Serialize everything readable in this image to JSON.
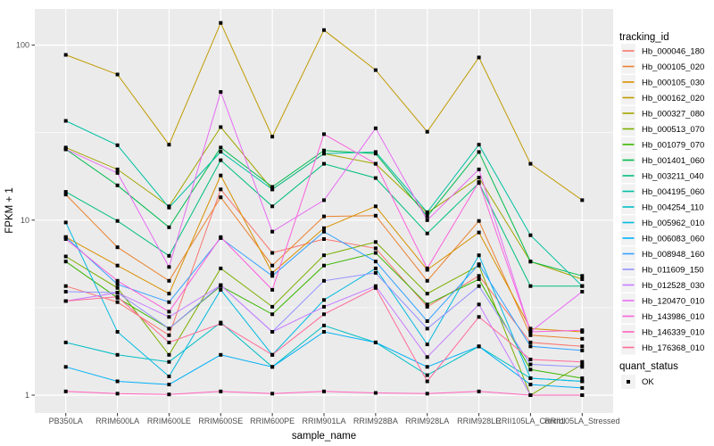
{
  "chart_data": {
    "type": "line",
    "title": "",
    "xlabel": "sample_name",
    "ylabel": "FPKM + 1",
    "y_scale": "log10",
    "y_ticks": [
      "1",
      "10",
      "100"
    ],
    "y_tick_values": [
      1,
      10,
      100
    ],
    "y_minor_gridlines": [
      3.1623,
      31.623
    ],
    "ylim": [
      0.79,
      160
    ],
    "grid": "white-on-grey (ggplot style)",
    "legend_position": "right",
    "categories": [
      "PB350LA",
      "RRIM600LA",
      "RRIM600LE",
      "RRIM600SE",
      "RRIM600PE",
      "RRIM901LA",
      "RRIM928BA",
      "RRIM928LA",
      "RRIM928LE",
      "RRII105LA_Control",
      "RRII105LA_Stressed"
    ],
    "legend": {
      "title": "tracking_id"
    },
    "quant_legend": {
      "title": "quant_status",
      "items": [
        "OK"
      ]
    },
    "point": {
      "shape": "square",
      "color": "#000000",
      "size": 4
    },
    "series": [
      {
        "name": "Hb_000046_180",
        "color": "#F8766D",
        "values": [
          4.2,
          3.4,
          2.2,
          15.0,
          6.5,
          7.8,
          6.9,
          3.2,
          4.8,
          2.0,
          1.9
        ]
      },
      {
        "name": "Hb_000105_020",
        "color": "#EA8331",
        "values": [
          14.0,
          7.0,
          4.5,
          13.5,
          5.5,
          10.5,
          10.6,
          4.5,
          9.9,
          2.2,
          2.1
        ]
      },
      {
        "name": "Hb_000105_030",
        "color": "#D89000",
        "values": [
          8.0,
          5.5,
          3.8,
          18.0,
          5.0,
          9.0,
          12.0,
          5.2,
          8.5,
          2.4,
          2.3
        ]
      },
      {
        "name": "Hb_000162_020",
        "color": "#C09B00",
        "values": [
          88,
          68,
          27,
          134,
          30,
          122,
          72,
          32,
          85,
          21,
          13
        ]
      },
      {
        "name": "Hb_000327_080",
        "color": "#A3A500",
        "values": [
          26,
          19.5,
          12,
          34,
          15,
          24,
          21,
          11,
          17.5,
          5.8,
          4.6
        ]
      },
      {
        "name": "Hb_000513_070",
        "color": "#7CAE00",
        "values": [
          6.2,
          4.1,
          1.7,
          5.3,
          3.2,
          6.3,
          7.5,
          3.8,
          5.5,
          1.0,
          1.5
        ]
      },
      {
        "name": "Hb_001079_070",
        "color": "#39B600",
        "values": [
          5.8,
          3.6,
          2.4,
          4.2,
          2.9,
          5.5,
          6.5,
          3.3,
          4.6,
          1.4,
          1.25
        ]
      },
      {
        "name": "Hb_001401_060",
        "color": "#00BB4E",
        "values": [
          25.4,
          15.8,
          9.1,
          26,
          15.5,
          25,
          24,
          10.5,
          24.5,
          5.8,
          4.8
        ]
      },
      {
        "name": "Hb_003211_040",
        "color": "#00BF7D",
        "values": [
          14.5,
          9.9,
          6.25,
          22,
          12,
          21,
          17.4,
          8.4,
          16.3,
          4.2,
          4.2
        ]
      },
      {
        "name": "Hb_004195_060",
        "color": "#00C1A3",
        "values": [
          36.9,
          26.8,
          11.8,
          24.6,
          15.0,
          24,
          24.5,
          11.1,
          27,
          8.2,
          4.2
        ]
      },
      {
        "name": "Hb_004254_110",
        "color": "#00BFC4",
        "values": [
          2.0,
          1.7,
          1.55,
          2.6,
          1.45,
          2.5,
          2.0,
          1.3,
          1.9,
          1.25,
          1.2
        ]
      },
      {
        "name": "Hb_005962_010",
        "color": "#00BAE0",
        "values": [
          9.7,
          2.3,
          1.28,
          4.0,
          1.7,
          3.5,
          5.3,
          1.95,
          6.3,
          1.25,
          1.2
        ]
      },
      {
        "name": "Hb_006083_060",
        "color": "#00B0F6",
        "values": [
          1.45,
          1.2,
          1.15,
          1.7,
          1.45,
          2.3,
          2.0,
          1.45,
          1.9,
          1.15,
          1.1
        ]
      },
      {
        "name": "Hb_008948_160",
        "color": "#35A2FF",
        "values": [
          8.0,
          4.3,
          3.4,
          7.9,
          4.8,
          8.6,
          5.8,
          2.65,
          5.6,
          1.9,
          1.8
        ]
      },
      {
        "name": "Hb_011609_150",
        "color": "#9590FF",
        "values": [
          3.9,
          3.85,
          2.4,
          4.25,
          2.3,
          4.5,
          5.0,
          2.4,
          4.2,
          1.5,
          1.45
        ]
      },
      {
        "name": "Hb_012528_030",
        "color": "#C77CFF",
        "values": [
          3.45,
          3.85,
          2.8,
          4.25,
          2.3,
          3.2,
          4.2,
          1.65,
          3.3,
          1.0,
          1.0
        ]
      },
      {
        "name": "Hb_120470_010",
        "color": "#E76BF3",
        "values": [
          25.4,
          18.6,
          5.4,
          54,
          8.6,
          13,
          33.5,
          10,
          19.5,
          2.3,
          3.9
        ]
      },
      {
        "name": "Hb_143986_010",
        "color": "#FA62DB",
        "values": [
          7.8,
          4.5,
          3.0,
          8.0,
          4.0,
          31,
          21,
          5.3,
          16.5,
          2.3,
          2.35
        ]
      },
      {
        "name": "Hb_146339_010",
        "color": "#FF62BC",
        "values": [
          1.05,
          1.02,
          1.01,
          1.05,
          1.02,
          1.05,
          1.03,
          1.02,
          1.05,
          1.0,
          1.0
        ]
      },
      {
        "name": "Hb_176368_010",
        "color": "#FF6A98",
        "values": [
          3.45,
          3.65,
          2.0,
          2.56,
          1.7,
          2.9,
          4.1,
          1.2,
          2.8,
          1.6,
          1.55
        ]
      }
    ]
  },
  "style": {
    "page_bg": "#FFFFFF",
    "panel_bg": "#EBEBEB",
    "grid_color": "#FFFFFF",
    "tick_color": "#333333",
    "tick_label_color": "#4D4D4D",
    "axis_title_color": "#000000",
    "legend_key_bg": "#F2F2F2",
    "point_color": "#000000"
  }
}
